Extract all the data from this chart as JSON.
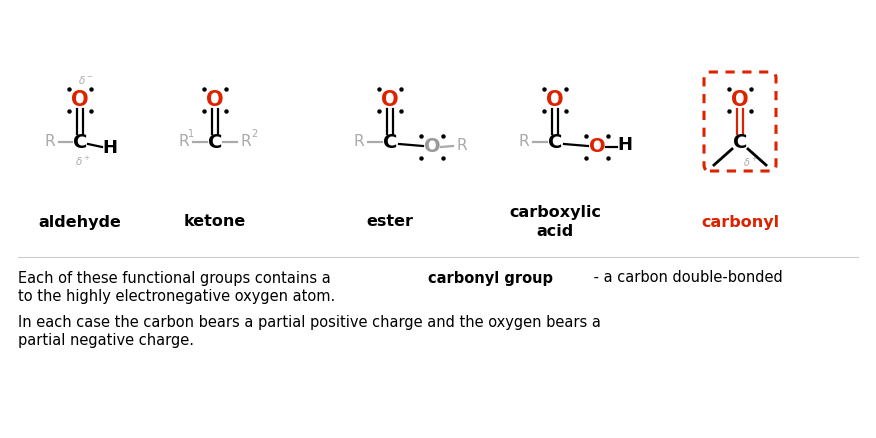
{
  "background_color": "#ffffff",
  "text_color": "#000000",
  "red_color": "#dd2200",
  "gray_color": "#999999",
  "light_gray": "#aaaaaa",
  "line1_plain": "Each of these functional groups contains a ",
  "line1_bold": "carbonyl group",
  "line1_rest": " - a carbon double-bonded",
  "line2": "to the highly electronegative oxygen atom.",
  "line3": "In each case the carbon bears a partial positive charge and the oxygen bears a",
  "line4": "partial negative charge.",
  "groups": [
    "aldehyde",
    "ketone",
    "ester",
    "carboxylic\nacid",
    "carbonyl"
  ],
  "group_colors": [
    "#000000",
    "#000000",
    "#000000",
    "#000000",
    "#dd2200"
  ],
  "group_centers_x": [
    80,
    215,
    390,
    555,
    740
  ],
  "fig_width": 8.76,
  "fig_height": 4.38,
  "dpi": 100
}
